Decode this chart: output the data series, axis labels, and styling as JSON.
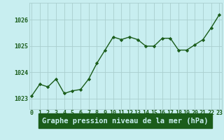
{
  "x": [
    0,
    1,
    2,
    3,
    4,
    5,
    6,
    7,
    8,
    9,
    10,
    11,
    12,
    13,
    14,
    15,
    16,
    17,
    18,
    19,
    20,
    21,
    22,
    23
  ],
  "y": [
    1023.1,
    1023.55,
    1023.45,
    1023.75,
    1023.2,
    1023.3,
    1023.35,
    1023.75,
    1024.35,
    1024.85,
    1025.35,
    1025.25,
    1025.35,
    1025.25,
    1025.0,
    1025.0,
    1025.3,
    1025.3,
    1024.85,
    1024.85,
    1025.05,
    1025.25,
    1025.7,
    1026.2
  ],
  "line_color": "#1a5c1a",
  "marker_color": "#1a5c1a",
  "bg_color": "#c8eef0",
  "grid_color": "#aacece",
  "xlabel": "Graphe pression niveau de la mer (hPa)",
  "xlabel_color": "#c8eef0",
  "xlabel_bg": "#1a5c1a",
  "tick_color": "#1a5c1a",
  "ytick_labels": [
    "1023",
    "1024",
    "1025",
    "1026"
  ],
  "ytick_vals": [
    1023,
    1024,
    1025,
    1026
  ],
  "xticks": [
    0,
    1,
    2,
    3,
    4,
    5,
    6,
    7,
    8,
    9,
    10,
    11,
    12,
    13,
    14,
    15,
    16,
    17,
    18,
    19,
    20,
    21,
    22,
    23
  ],
  "ylim": [
    1022.6,
    1026.65
  ],
  "xlim": [
    -0.3,
    23.3
  ],
  "linewidth": 1.0,
  "markersize": 2.2,
  "xlabel_fontsize": 7.5,
  "tick_fontsize": 6.0
}
